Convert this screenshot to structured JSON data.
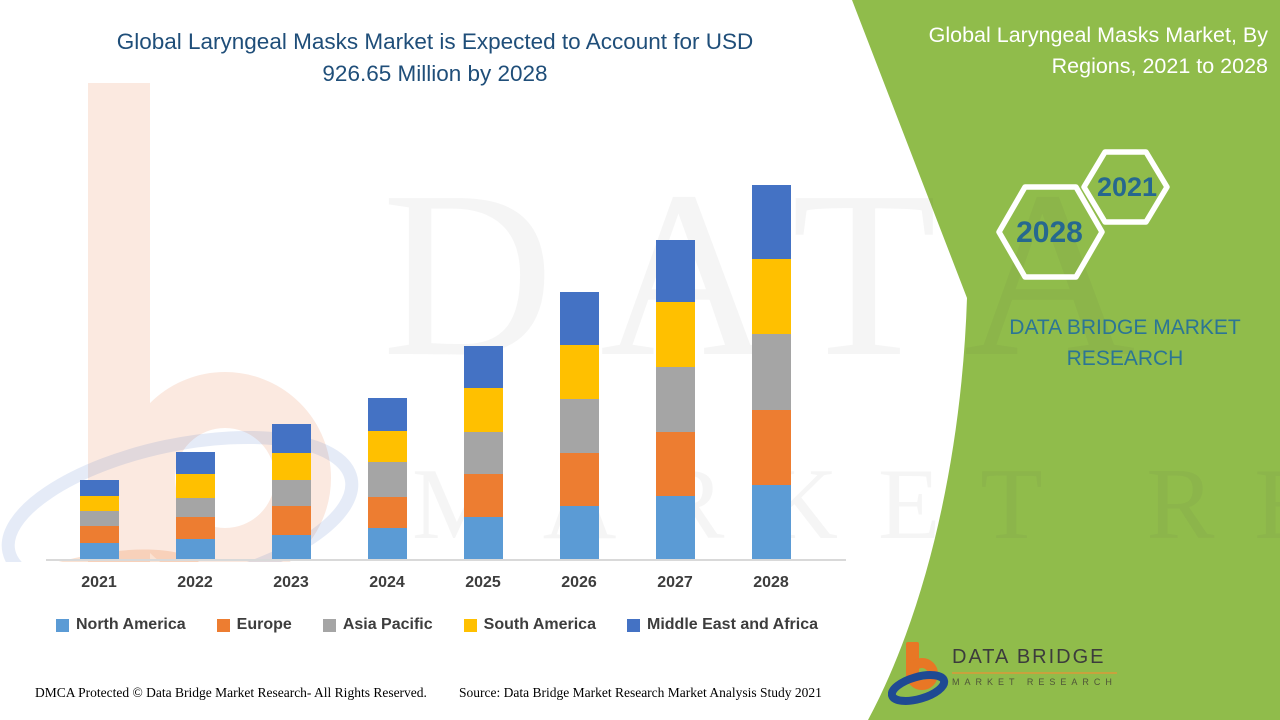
{
  "header": {
    "title": "Global Laryngeal Masks Market is Expected to Account for USD 926.65 Million by 2028"
  },
  "right_panel": {
    "panel_color": "#90BC4B",
    "title": "Global Laryngeal Masks Market, By Regions, 2021 to 2028",
    "hexagons": [
      {
        "label": "2021"
      },
      {
        "label": "2028"
      }
    ],
    "brand_text": "DATA BRIDGE MARKET RESEARCH",
    "logo": {
      "name": "DATA BRIDGE",
      "subtitle": "MARKET RESEARCH"
    }
  },
  "watermarks": {
    "line1": "DATA BRIDGE",
    "line2": "MARKET RESEARCH"
  },
  "footer": {
    "dmca": "DMCA Protected © Data Bridge Market Research- All Rights Reserved.",
    "source": "Source: Data Bridge Market Research Market Analysis Study 2021"
  },
  "chart_data": {
    "type": "bar",
    "stacked": true,
    "unit": "USD Million",
    "title": "Global Laryngeal Masks Market, By Regions, 2021 to 2028",
    "categories": [
      "2021",
      "2022",
      "2023",
      "2024",
      "2025",
      "2026",
      "2027",
      "2028"
    ],
    "series": [
      {
        "name": "North America",
        "color": "#5B9BD5",
        "values": [
          40,
          50,
          60,
          77,
          104,
          131,
          156,
          183.65
        ]
      },
      {
        "name": "Europe",
        "color": "#ED7D31",
        "values": [
          42,
          55,
          72,
          77,
          107,
          131,
          159,
          186
        ]
      },
      {
        "name": "Asia Pacific",
        "color": "#A5A5A5",
        "values": [
          37,
          47,
          64,
          87,
          104,
          134,
          161,
          188
        ]
      },
      {
        "name": "South America",
        "color": "#FFC000",
        "values": [
          37,
          59,
          67,
          77,
          109,
          134,
          161,
          186
        ]
      },
      {
        "name": "Middle East and Africa",
        "color": "#4472C4",
        "values": [
          40,
          55,
          72,
          82,
          104,
          131,
          154,
          183
        ]
      }
    ],
    "totals": [
      196,
      266,
      335,
      400,
      528,
      661,
      791,
      926.65
    ],
    "highlight_value": "926.65",
    "legend_position": "bottom",
    "gridlines": false,
    "value_axis": "hidden"
  }
}
